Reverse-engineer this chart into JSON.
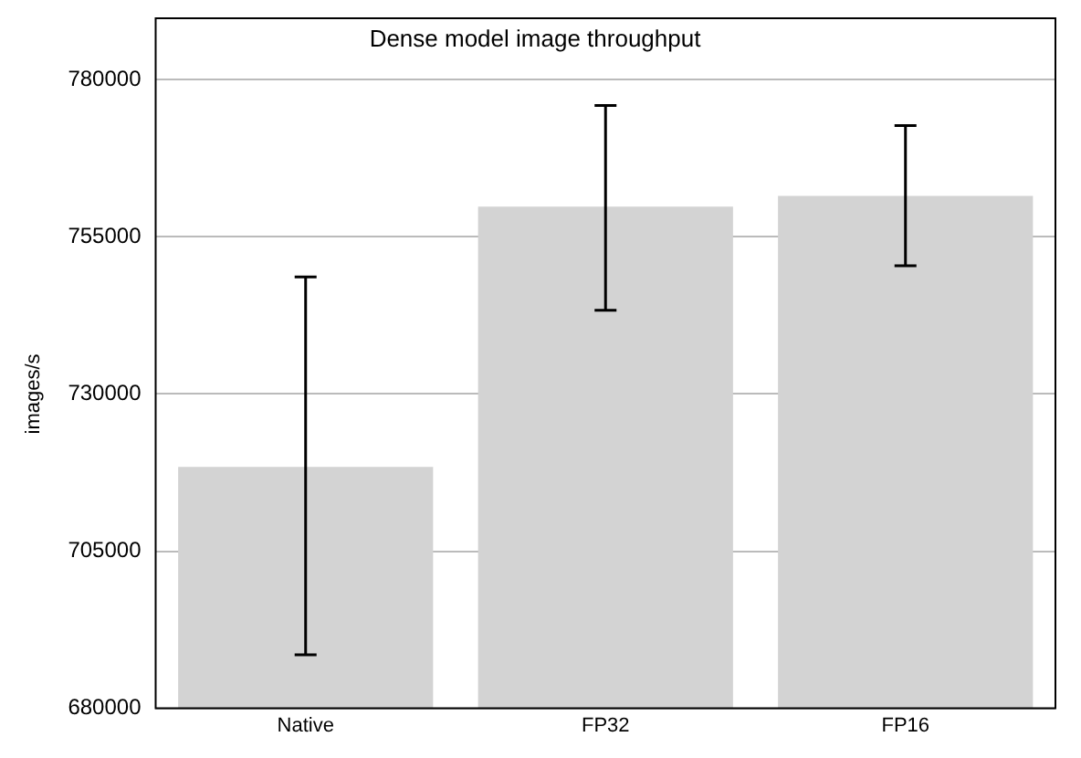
{
  "chart_data": {
    "type": "bar",
    "title": "Dense model image throughput",
    "ylabel": "images/s",
    "categories": [
      "Native",
      "FP32",
      "FP16"
    ],
    "values": [
      718400,
      759800,
      761500
    ],
    "errors": [
      [
        688500,
        748600
      ],
      [
        743300,
        775900
      ],
      [
        750400,
        772700
      ]
    ],
    "color": "#d3d3d3",
    "ylim": [
      680000,
      780000
    ],
    "yticks": [
      680000,
      705000,
      730000,
      755000,
      780000
    ],
    "grid": "y"
  }
}
